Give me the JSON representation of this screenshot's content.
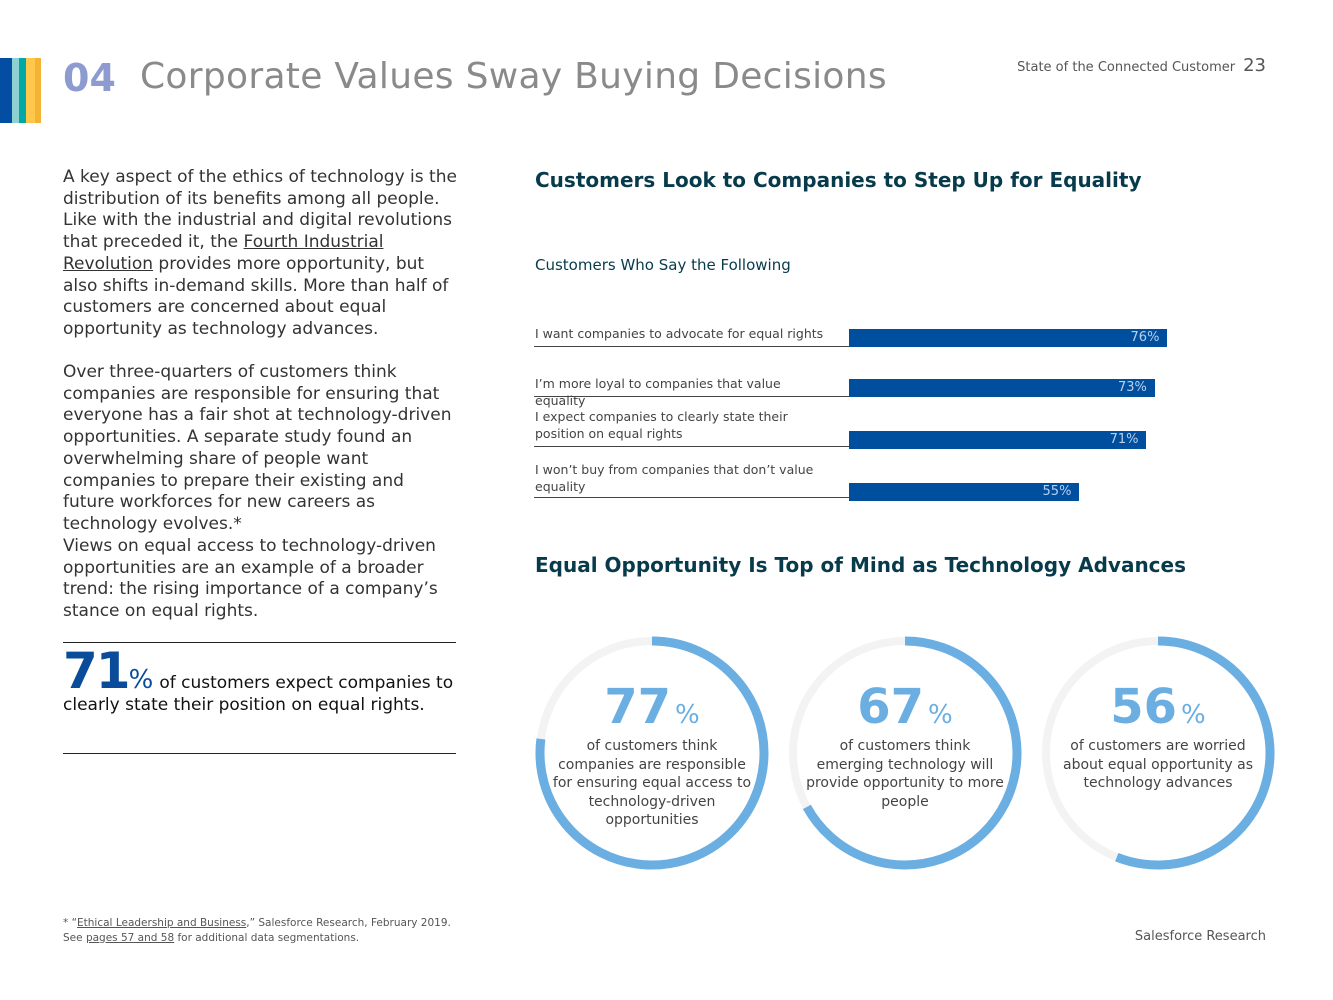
{
  "header": {
    "section_number": "04",
    "title": "Corporate Values Sway Buying Decisions",
    "report_name": "State of the Connected Customer",
    "page_number": "23",
    "stripe_colors": [
      "#034ea2",
      "#8ed1d3",
      "#00a9a5",
      "#ffc84d",
      "#f5b335"
    ]
  },
  "body": {
    "p1_before": "A key aspect of the ethics of technology is the distribution of its benefits among all people. Like with the industrial and digital revolutions that preceded it, the ",
    "p1_link": "Fourth Industrial Revolution",
    "p1_after": " provides more opportunity, but also shifts in-demand skills. More than half of customers are concerned about equal opportunity as technology advances.",
    "p2": "Over three-quarters of customers think companies are responsible for ensuring that everyone has a fair shot at technology-driven opportunities. A separate study found an overwhelming share of people want companies to prepare their existing and future workforces for new careers as technology evolves.*",
    "p3": "Views on equal access to technology-driven opportunities are an example of a broader trend: the rising importance of a company’s stance on equal rights."
  },
  "stat": {
    "value": "71",
    "unit": "%",
    "text": "of customers expect companies to clearly state their position on equal rights."
  },
  "chart_data": [
    {
      "type": "bar",
      "title": "Customers Look to Companies to Step Up for Equality",
      "subtitle": "Customers Who Say the Following",
      "categories": [
        "I want companies to advocate for equal rights",
        "I’m more loyal to companies that value equality",
        "I expect companies to clearly state their position on equal rights",
        "I won’t buy from companies that don’t value equality"
      ],
      "values": [
        76,
        73,
        71,
        55
      ],
      "value_labels": [
        "76%",
        "73%",
        "71%",
        "55%"
      ],
      "orientation": "horizontal",
      "xlim": [
        0,
        100
      ],
      "color": "#004f9f"
    },
    {
      "type": "pie",
      "title": "Equal Opportunity Is Top of Mind as Technology Advances",
      "variant": "donut",
      "items": [
        {
          "value": 77,
          "label": "77",
          "unit": "%",
          "text": "of customers think companies are responsible for ensuring equal access to technology-driven opportunities"
        },
        {
          "value": 67,
          "label": "67",
          "unit": "%",
          "text": "of customers think emerging technology will provide opportunity to more people"
        },
        {
          "value": 56,
          "label": "56",
          "unit": "%",
          "text": "of customers are worried about equal opportunity as technology advances"
        }
      ],
      "color": "#6baee2",
      "track_color": "#f3f3f3"
    }
  ],
  "footer": {
    "note_prefix": "* “",
    "note_link": "Ethical Leadership and Business",
    "note_after": ",” Salesforce Research, February 2019.",
    "see": "See ",
    "see_link": "pages 57 and 58",
    "see_after": " for additional data segmentations.",
    "right": "Salesforce Research"
  }
}
